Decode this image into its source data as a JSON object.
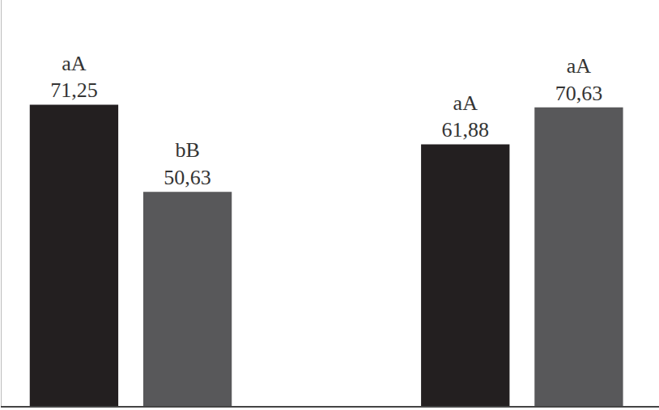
{
  "chart_data": {
    "type": "bar",
    "categories": [
      null,
      null
    ],
    "series": [
      {
        "color": "#231f20",
        "values": [
          71.25,
          61.88
        ],
        "value_labels": [
          "71,25",
          "61,88"
        ],
        "letters": [
          "aA",
          "aA"
        ]
      },
      {
        "color": "#58585a",
        "values": [
          50.63,
          70.63
        ],
        "value_labels": [
          "50,63",
          "70,63"
        ],
        "letters": [
          "bB",
          "aA"
        ]
      }
    ],
    "ylim": [
      0,
      96
    ],
    "data_labels": true,
    "tick_labels": false,
    "grid": false
  }
}
